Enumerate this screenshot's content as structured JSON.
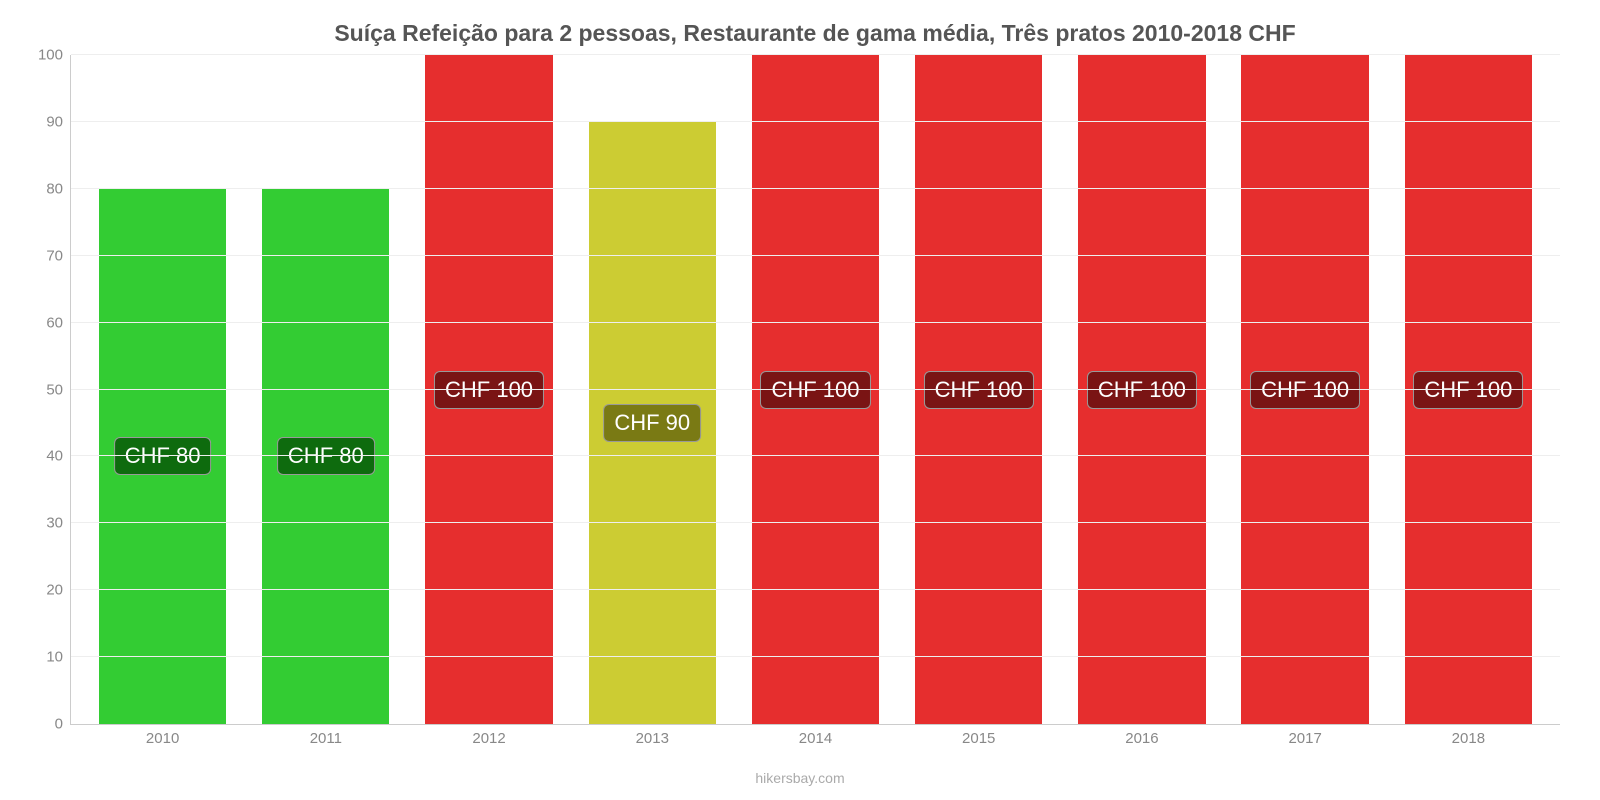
{
  "chart": {
    "type": "bar",
    "title": "Suíça Refeição para 2 pessoas, Restaurante de gama média, Três pratos 2010-2018 CHF",
    "title_fontsize": 23,
    "title_color": "#555555",
    "attribution": "hikersbay.com",
    "attribution_color": "#aaaaaa",
    "background_color": "#ffffff",
    "grid_color": "#eeeeee",
    "axis_color": "#cccccc",
    "label_fontsize": 15,
    "value_label_fontsize": 22,
    "ylim": [
      0,
      100
    ],
    "ytick_step": 10,
    "yticks": [
      0,
      10,
      20,
      30,
      40,
      50,
      60,
      70,
      80,
      90,
      100
    ],
    "categories": [
      "2010",
      "2011",
      "2012",
      "2013",
      "2014",
      "2015",
      "2016",
      "2017",
      "2018"
    ],
    "values": [
      80,
      80,
      100,
      90,
      100,
      100,
      100,
      100,
      100
    ],
    "bar_colors": [
      "#33cc33",
      "#33cc33",
      "#e62e2e",
      "#cccc33",
      "#e62e2e",
      "#e62e2e",
      "#e62e2e",
      "#e62e2e",
      "#e62e2e"
    ],
    "value_labels": [
      "CHF 80",
      "CHF 80",
      "CHF 100",
      "CHF 90",
      "CHF 100",
      "CHF 100",
      "CHF 100",
      "CHF 100",
      "CHF 100"
    ],
    "label_bg_colors": [
      "#0e6b0e",
      "#0e6b0e",
      "#7a1414",
      "#7a7a14",
      "#7a1414",
      "#7a1414",
      "#7a1414",
      "#7a1414",
      "#7a1414"
    ],
    "bar_width": 0.78
  }
}
